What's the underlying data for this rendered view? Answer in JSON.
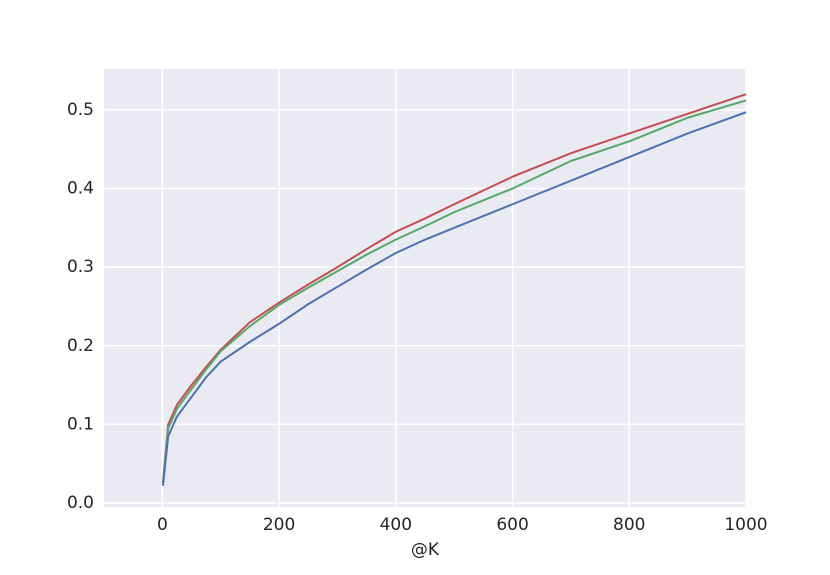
{
  "chart_data": {
    "type": "line",
    "x_label": "@K",
    "x": [
      1,
      10,
      25,
      50,
      75,
      100,
      150,
      200,
      250,
      300,
      350,
      400,
      450,
      500,
      600,
      700,
      800,
      900,
      1000
    ],
    "series": [
      {
        "color": "#c44e52",
        "values": [
          0.025,
          0.1,
          0.125,
          0.15,
          0.173,
          0.195,
          0.23,
          0.255,
          0.278,
          0.3,
          0.323,
          0.345,
          0.362,
          0.38,
          0.415,
          0.445,
          0.47,
          0.495,
          0.52
        ]
      },
      {
        "color": "#55a868",
        "values": [
          0.025,
          0.095,
          0.12,
          0.145,
          0.17,
          0.193,
          0.225,
          0.252,
          0.274,
          0.295,
          0.316,
          0.335,
          0.352,
          0.37,
          0.4,
          0.435,
          0.46,
          0.49,
          0.512
        ]
      },
      {
        "color": "#4c72b0",
        "values": [
          0.022,
          0.085,
          0.11,
          0.135,
          0.16,
          0.18,
          0.205,
          0.228,
          0.253,
          0.275,
          0.297,
          0.318,
          0.335,
          0.35,
          0.38,
          0.41,
          0.44,
          0.47,
          0.497
        ]
      }
    ],
    "xlim": [
      -100,
      1000
    ],
    "ylim": [
      -0.005,
      0.552
    ],
    "xticks": [
      0,
      200,
      400,
      600,
      800,
      1000
    ],
    "yticks": [
      {
        "value": 0,
        "label": "0.0"
      },
      0.1,
      0.2,
      0.3,
      0.4,
      0.5
    ],
    "grid": true,
    "background": "#eaeaf2"
  }
}
